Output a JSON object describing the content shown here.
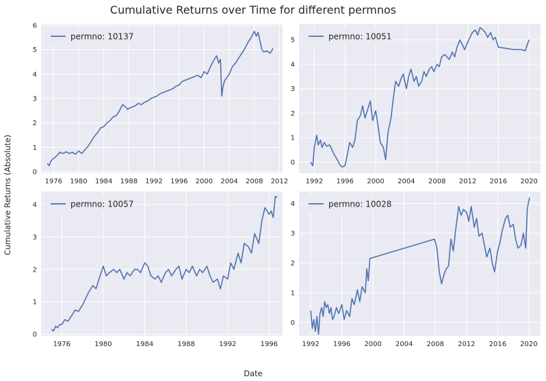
{
  "figure": {
    "title": "Cumulative Returns over Time for different permnos",
    "xlabel": "Date",
    "ylabel": "Cumulative Returns (Absolute)"
  },
  "style": {
    "background": "#eaeaf2",
    "grid": "#ffffff",
    "line": "#4c72b0"
  },
  "chart_data": [
    {
      "type": "line",
      "position": "top-left",
      "legend": "permno: 10137",
      "legend_loc": "upper-left",
      "grid": true,
      "xlim": [
        1974.0,
        2012.5
      ],
      "ylim": [
        -0.05,
        6.05
      ],
      "xticks": [
        1976,
        1980,
        1984,
        1988,
        1992,
        1996,
        2000,
        2004,
        2008,
        2012
      ],
      "yticks": [
        0,
        1,
        2,
        3,
        4,
        5,
        6
      ],
      "series": [
        {
          "name": "permno: 10137",
          "x": [
            1975.0,
            1975.3,
            1975.6,
            1976.0,
            1976.5,
            1977.0,
            1977.5,
            1978.0,
            1978.5,
            1979.0,
            1979.5,
            1980.0,
            1980.5,
            1981.0,
            1981.5,
            1982.0,
            1982.5,
            1983.0,
            1983.5,
            1984.0,
            1984.5,
            1985.0,
            1985.5,
            1986.0,
            1986.5,
            1987.0,
            1987.5,
            1987.8,
            1988.0,
            1988.5,
            1989.0,
            1989.5,
            1990.0,
            1990.5,
            1991.0,
            1991.5,
            1992.0,
            1992.5,
            1993.0,
            1993.5,
            1994.0,
            1994.5,
            1995.0,
            1995.5,
            1996.0,
            1996.5,
            1997.0,
            1997.5,
            1998.0,
            1998.5,
            1999.0,
            1999.5,
            2000.0,
            2000.5,
            2001.0,
            2001.5,
            2002.0,
            2002.3,
            2002.6,
            2002.8,
            2003.0,
            2003.3,
            2003.6,
            2004.0,
            2004.5,
            2005.0,
            2005.5,
            2006.0,
            2006.5,
            2007.0,
            2007.5,
            2008.0,
            2008.3,
            2008.6,
            2008.9,
            2009.2,
            2009.5,
            2010.0,
            2010.5,
            2011.0
          ],
          "values": [
            0.35,
            0.25,
            0.45,
            0.55,
            0.65,
            0.8,
            0.75,
            0.82,
            0.75,
            0.8,
            0.72,
            0.85,
            0.75,
            0.9,
            1.05,
            1.25,
            1.45,
            1.6,
            1.8,
            1.85,
            2.0,
            2.1,
            2.25,
            2.3,
            2.5,
            2.75,
            2.65,
            2.55,
            2.6,
            2.65,
            2.7,
            2.8,
            2.75,
            2.85,
            2.9,
            3.0,
            3.05,
            3.1,
            3.2,
            3.25,
            3.3,
            3.35,
            3.4,
            3.5,
            3.55,
            3.7,
            3.75,
            3.8,
            3.85,
            3.9,
            3.95,
            3.85,
            4.1,
            4.0,
            4.3,
            4.55,
            4.75,
            4.45,
            4.6,
            3.1,
            3.5,
            3.75,
            3.85,
            4.0,
            4.3,
            4.45,
            4.65,
            4.85,
            5.05,
            5.3,
            5.5,
            5.75,
            5.55,
            5.7,
            5.35,
            5.0,
            4.9,
            4.95,
            4.85,
            5.05
          ]
        }
      ]
    },
    {
      "type": "line",
      "position": "top-right",
      "legend": "permno: 10051",
      "legend_loc": "upper-left",
      "grid": true,
      "xlim": [
        1990.0,
        2021.5
      ],
      "ylim": [
        -0.45,
        5.65
      ],
      "xticks": [
        1992,
        1996,
        2000,
        2004,
        2008,
        2012,
        2016,
        2020
      ],
      "yticks": [
        0,
        1,
        2,
        3,
        4,
        5
      ],
      "series": [
        {
          "name": "permno: 10051",
          "x": [
            1991.5,
            1991.8,
            1992.0,
            1992.3,
            1992.5,
            1992.8,
            1993.0,
            1993.3,
            1993.6,
            1994.0,
            1994.3,
            1994.6,
            1995.0,
            1995.3,
            1995.6,
            1996.0,
            1996.3,
            1996.6,
            1997.0,
            1997.3,
            1997.6,
            1998.0,
            1998.3,
            1998.6,
            1999.0,
            1999.3,
            1999.6,
            2000.0,
            2000.3,
            2000.6,
            2001.0,
            2001.3,
            2001.6,
            2002.0,
            2002.3,
            2002.6,
            2003.0,
            2003.3,
            2003.6,
            2004.0,
            2004.3,
            2004.6,
            2005.0,
            2005.3,
            2005.6,
            2006.0,
            2006.3,
            2006.6,
            2007.0,
            2007.3,
            2007.6,
            2008.0,
            2008.3,
            2008.6,
            2009.0,
            2009.3,
            2009.6,
            2010.0,
            2010.3,
            2010.6,
            2011.0,
            2011.3,
            2011.6,
            2012.0,
            2012.3,
            2012.6,
            2013.0,
            2013.3,
            2013.6,
            2014.0,
            2014.3,
            2014.6,
            2015.0,
            2015.3,
            2015.6,
            2016.0,
            2017.0,
            2018.0,
            2019.0,
            2019.5,
            2020.0
          ],
          "values": [
            0.0,
            -0.15,
            0.6,
            1.1,
            0.7,
            0.9,
            0.6,
            0.8,
            0.65,
            0.7,
            0.5,
            0.3,
            0.1,
            -0.1,
            -0.2,
            -0.15,
            0.3,
            0.8,
            0.6,
            0.9,
            1.7,
            1.9,
            2.3,
            1.8,
            2.2,
            2.5,
            1.7,
            2.1,
            1.5,
            0.8,
            0.6,
            0.1,
            1.2,
            1.8,
            2.6,
            3.3,
            3.1,
            3.4,
            3.6,
            3.0,
            3.5,
            3.8,
            3.3,
            3.5,
            3.1,
            3.3,
            3.7,
            3.5,
            3.8,
            3.9,
            3.7,
            4.0,
            3.9,
            4.3,
            4.4,
            4.3,
            4.2,
            4.5,
            4.3,
            4.7,
            5.0,
            4.8,
            4.6,
            4.9,
            5.1,
            5.3,
            5.4,
            5.2,
            5.5,
            5.4,
            5.3,
            5.1,
            5.3,
            5.0,
            5.1,
            4.7,
            4.65,
            4.6,
            4.6,
            4.55,
            5.0
          ]
        }
      ]
    },
    {
      "type": "line",
      "position": "bottom-left",
      "legend": "permno: 10057",
      "legend_loc": "upper-left",
      "grid": true,
      "xlim": [
        1974.0,
        1997.3
      ],
      "ylim": [
        -0.05,
        4.4
      ],
      "xticks": [
        1976,
        1980,
        1984,
        1988,
        1992,
        1996
      ],
      "yticks": [
        0,
        1,
        2,
        3,
        4
      ],
      "series": [
        {
          "name": "permno: 10057",
          "x": [
            1975.0,
            1975.2,
            1975.4,
            1975.6,
            1975.8,
            1976.0,
            1976.3,
            1976.6,
            1977.0,
            1977.3,
            1977.6,
            1978.0,
            1978.3,
            1978.6,
            1979.0,
            1979.3,
            1979.6,
            1980.0,
            1980.3,
            1980.6,
            1981.0,
            1981.3,
            1981.6,
            1982.0,
            1982.3,
            1982.6,
            1983.0,
            1983.3,
            1983.6,
            1984.0,
            1984.3,
            1984.6,
            1985.0,
            1985.3,
            1985.6,
            1986.0,
            1986.3,
            1986.6,
            1987.0,
            1987.3,
            1987.6,
            1988.0,
            1988.3,
            1988.6,
            1989.0,
            1989.3,
            1989.6,
            1990.0,
            1990.3,
            1990.6,
            1991.0,
            1991.3,
            1991.6,
            1992.0,
            1992.3,
            1992.6,
            1993.0,
            1993.3,
            1993.6,
            1994.0,
            1994.3,
            1994.6,
            1995.0,
            1995.3,
            1995.6,
            1996.0,
            1996.2,
            1996.4,
            1996.6,
            1996.8
          ],
          "values": [
            0.15,
            0.1,
            0.25,
            0.2,
            0.3,
            0.3,
            0.45,
            0.4,
            0.6,
            0.75,
            0.7,
            0.9,
            1.1,
            1.3,
            1.5,
            1.4,
            1.7,
            2.1,
            1.8,
            1.9,
            2.0,
            1.9,
            2.0,
            1.7,
            1.9,
            1.8,
            2.0,
            2.0,
            1.9,
            2.2,
            2.1,
            1.8,
            1.7,
            1.8,
            1.6,
            1.9,
            2.0,
            1.8,
            2.0,
            2.1,
            1.7,
            2.0,
            1.9,
            2.1,
            1.8,
            2.0,
            1.9,
            2.1,
            1.8,
            1.6,
            1.7,
            1.4,
            1.8,
            1.7,
            2.2,
            2.0,
            2.5,
            2.2,
            2.8,
            2.7,
            2.5,
            3.1,
            2.8,
            3.5,
            3.9,
            3.7,
            3.8,
            3.6,
            4.25,
            4.22
          ]
        }
      ]
    },
    {
      "type": "line",
      "position": "bottom-right",
      "legend": "permno: 10028",
      "legend_loc": "upper-left",
      "grid": true,
      "xlim": [
        1990.5,
        2021.5
      ],
      "ylim": [
        -0.45,
        4.4
      ],
      "xticks": [
        1992,
        1996,
        2000,
        2004,
        2008,
        2012,
        2016,
        2020
      ],
      "yticks": [
        0,
        1,
        2,
        3,
        4
      ],
      "series": [
        {
          "name": "permno: 10028",
          "x": [
            1992.0,
            1992.2,
            1992.4,
            1992.6,
            1992.8,
            1993.0,
            1993.2,
            1993.4,
            1993.6,
            1993.8,
            1994.0,
            1994.2,
            1994.4,
            1994.6,
            1994.8,
            1995.0,
            1995.3,
            1995.6,
            1996.0,
            1996.3,
            1996.6,
            1997.0,
            1997.3,
            1997.6,
            1998.0,
            1998.3,
            1998.6,
            1999.0,
            1999.2,
            1999.4,
            1999.6,
            2007.9,
            2008.2,
            2008.5,
            2008.8,
            2009.1,
            2009.4,
            2009.7,
            2010.0,
            2010.3,
            2010.6,
            2011.0,
            2011.3,
            2011.6,
            2012.0,
            2012.3,
            2012.6,
            2013.0,
            2013.3,
            2013.6,
            2014.0,
            2014.3,
            2014.6,
            2015.0,
            2015.3,
            2015.6,
            2016.0,
            2016.3,
            2016.6,
            2017.0,
            2017.3,
            2017.6,
            2018.0,
            2018.3,
            2018.6,
            2019.0,
            2019.3,
            2019.6,
            2019.8,
            2020.0,
            2020.1
          ],
          "values": [
            0.4,
            -0.2,
            0.1,
            -0.3,
            0.2,
            -0.4,
            0.3,
            0.5,
            0.2,
            0.7,
            0.5,
            0.6,
            0.3,
            0.5,
            0.1,
            0.2,
            0.5,
            0.3,
            0.6,
            0.1,
            0.4,
            0.2,
            0.8,
            0.6,
            1.1,
            0.7,
            1.2,
            1.0,
            1.8,
            1.4,
            2.15,
            2.8,
            2.5,
            1.7,
            1.3,
            1.6,
            1.8,
            1.9,
            2.8,
            2.4,
            3.1,
            3.9,
            3.6,
            3.8,
            3.7,
            3.4,
            3.9,
            3.2,
            3.5,
            2.9,
            3.0,
            2.6,
            2.2,
            2.5,
            2.0,
            1.7,
            2.4,
            2.7,
            3.1,
            3.5,
            3.6,
            3.2,
            3.3,
            2.8,
            2.5,
            2.6,
            3.0,
            2.5,
            3.8,
            4.1,
            4.2
          ]
        }
      ]
    }
  ]
}
